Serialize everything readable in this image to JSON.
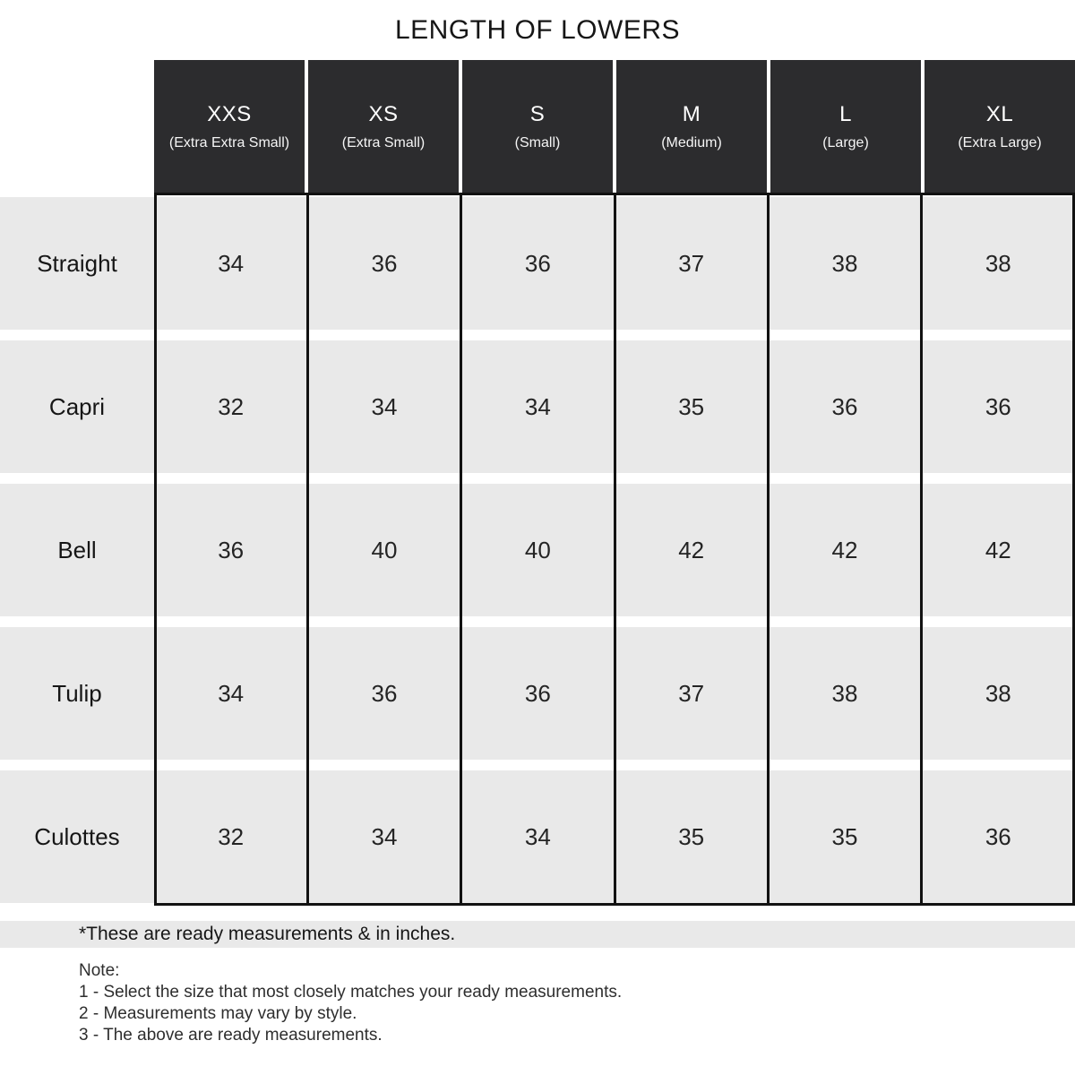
{
  "title": "LENGTH OF LOWERS",
  "table": {
    "columns": [
      {
        "abbr": "XXS",
        "full": "(Extra Extra Small)"
      },
      {
        "abbr": "XS",
        "full": "(Extra Small)"
      },
      {
        "abbr": "S",
        "full": "(Small)"
      },
      {
        "abbr": "M",
        "full": "(Medium)"
      },
      {
        "abbr": "L",
        "full": "(Large)"
      },
      {
        "abbr": "XL",
        "full": "(Extra Large)"
      }
    ],
    "rows": [
      {
        "label": "Straight",
        "values": [
          34,
          36,
          36,
          37,
          38,
          38
        ]
      },
      {
        "label": "Capri",
        "values": [
          32,
          34,
          34,
          35,
          36,
          36
        ]
      },
      {
        "label": "Bell",
        "values": [
          36,
          40,
          40,
          42,
          42,
          42
        ]
      },
      {
        "label": "Tulip",
        "values": [
          34,
          36,
          36,
          37,
          38,
          38
        ]
      },
      {
        "label": "Culottes",
        "values": [
          32,
          34,
          34,
          35,
          35,
          36
        ]
      }
    ]
  },
  "footnote": "*These are ready measurements & in inches.",
  "notes": {
    "heading": "Note:",
    "items": [
      "1 - Select the size that most closely matches your ready measurements.",
      "2 - Measurements may vary by style.",
      "3 - The above are ready measurements."
    ]
  },
  "colors": {
    "header_bg": "#2c2c2e",
    "row_bg": "#e9e9e9",
    "border": "#121212"
  },
  "chart_data": {
    "type": "table",
    "title": "LENGTH OF LOWERS",
    "columns": [
      "XXS (Extra Extra Small)",
      "XS (Extra Small)",
      "S (Small)",
      "M (Medium)",
      "L (Large)",
      "XL (Extra Large)"
    ],
    "row_labels": [
      "Straight",
      "Capri",
      "Bell",
      "Tulip",
      "Culottes"
    ],
    "values": [
      [
        34,
        36,
        36,
        37,
        38,
        38
      ],
      [
        32,
        34,
        34,
        35,
        36,
        36
      ],
      [
        36,
        40,
        40,
        42,
        42,
        42
      ],
      [
        34,
        36,
        36,
        37,
        38,
        38
      ],
      [
        32,
        34,
        34,
        35,
        35,
        36
      ]
    ],
    "units": "inches"
  }
}
